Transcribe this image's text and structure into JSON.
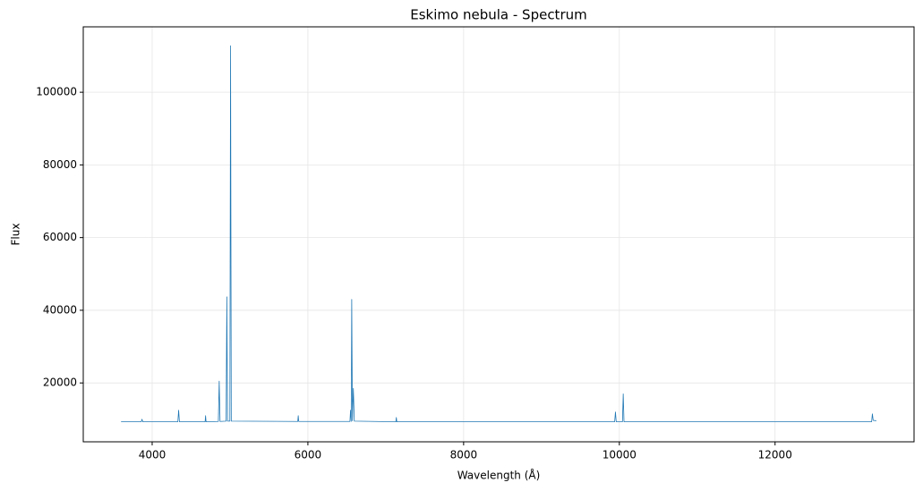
{
  "chart_data": {
    "type": "line",
    "title": "Eskimo nebula - Spectrum",
    "x_label": "Wavelength (Å)",
    "y_label": "Flux",
    "x": [
      3600,
      3860,
      3869,
      3880,
      4330,
      4340,
      4350,
      4680,
      4686,
      4692,
      4850,
      4861,
      4872,
      4950,
      4959,
      4968,
      4998,
      5007,
      5016,
      5870,
      5876,
      5882,
      6540,
      6548,
      6556,
      6563,
      6572,
      6584,
      6596,
      7130,
      7136,
      7142,
      9940,
      9950,
      9960,
      10040,
      10050,
      10060,
      13240,
      13250,
      13260,
      13300
    ],
    "series": [
      {
        "name": "Flux",
        "color": "#1f77b4",
        "values": [
          9300,
          9300,
          10000,
          9300,
          9300,
          12500,
          9300,
          9300,
          11000,
          9300,
          9400,
          20500,
          9400,
          9500,
          43700,
          9500,
          9500,
          112800,
          9500,
          9400,
          11000,
          9400,
          9400,
          12500,
          9400,
          43000,
          9600,
          18500,
          9500,
          9300,
          10500,
          9300,
          9300,
          12000,
          9300,
          9300,
          17000,
          9300,
          9300,
          11500,
          9700,
          9600
        ]
      }
    ],
    "xlim": [
      3115,
      13785
    ],
    "ylim": [
      3800,
      118000
    ],
    "xticks": [
      4000,
      6000,
      8000,
      10000,
      12000
    ],
    "yticks": [
      20000,
      40000,
      60000,
      80000,
      100000
    ],
    "grid": true
  }
}
